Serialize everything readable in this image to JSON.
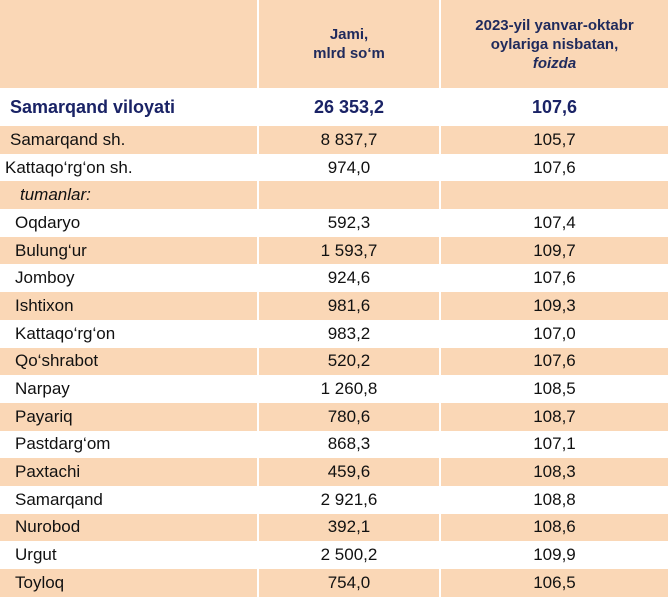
{
  "header": {
    "column_2": [
      "Jami,",
      "mlrd so‘m"
    ],
    "column_3": [
      "2023-yil yanvar-oktabr",
      "oylariga nisbatan,",
      "foizda"
    ]
  },
  "table": {
    "total_row": [
      "Samarqand viloyati",
      "26 353,2",
      "107,6"
    ],
    "cities": [
      [
        "Samarqand sh.",
        "8 837,7",
        "105,7"
      ],
      [
        "Kattaqo‘rg‘on sh.",
        "974,0",
        "107,6"
      ]
    ],
    "district_heading": "tumanlar:",
    "districts": [
      [
        "Oqdaryo",
        "592,3",
        "107,4"
      ],
      [
        "Bulung‘ur",
        "1 593,7",
        "109,7"
      ],
      [
        "Jomboy",
        "924,6",
        "107,6"
      ],
      [
        "Ishtixon",
        "981,6",
        "109,3"
      ],
      [
        "Kattaqo‘rg‘on",
        "983,2",
        "107,0"
      ],
      [
        "Qo‘shrabot",
        "520,2",
        "107,6"
      ],
      [
        "Narpay",
        "1 260,8",
        "108,5"
      ],
      [
        "Payariq",
        "780,6",
        "108,7"
      ],
      [
        "Pastdarg‘om",
        "868,3",
        "107,1"
      ],
      [
        "Paxtachi",
        "459,6",
        "108,3"
      ],
      [
        "Samarqand",
        "2 921,6",
        "108,8"
      ],
      [
        "Nurobod",
        "392,1",
        "108,6"
      ],
      [
        "Urgut",
        "2 500,2",
        "109,9"
      ],
      [
        "Toyloq",
        "754,0",
        "106,5"
      ]
    ]
  }
}
